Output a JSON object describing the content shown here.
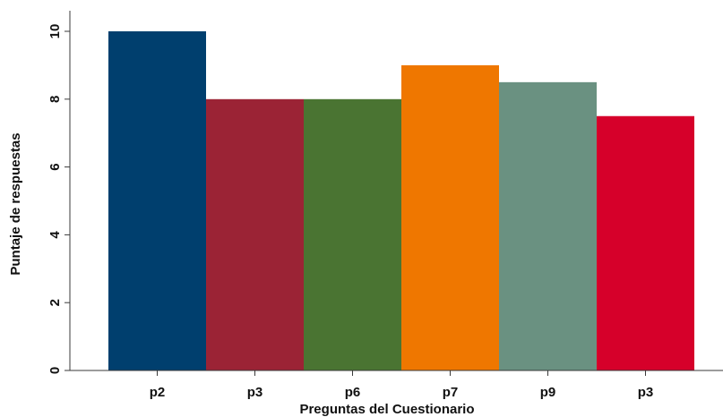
{
  "chart_data": {
    "type": "bar",
    "categories": [
      "p2",
      "p3",
      "p6",
      "p7",
      "p9",
      "p3"
    ],
    "values": [
      10,
      8,
      8,
      9,
      8.5,
      7.5
    ],
    "colors": [
      "#003f6e",
      "#9b2335",
      "#4a7432",
      "#ef7700",
      "#6a9181",
      "#d6002a"
    ],
    "title": "",
    "xlabel": "Preguntas del Cuestionario",
    "ylabel": "Puntaje de respuestas",
    "ylim": [
      0,
      10
    ],
    "yticks": [
      0,
      2,
      4,
      6,
      8,
      10
    ],
    "grid": false,
    "legend": "none"
  }
}
